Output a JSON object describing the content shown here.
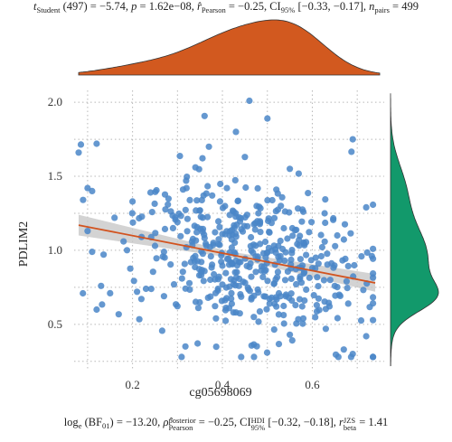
{
  "stats_top": {
    "t_sym": "t",
    "t_sub": "Student",
    "t_val": " (497) = −5.74, ",
    "p_sym": "p",
    "p_val": " = 1.62e−08, ",
    "r_sym": "r̂",
    "r_sub": "Pearson",
    "r_val": " = −0.25, CI",
    "ci_sub": "95%",
    "ci_val": " [−0.33, −0.17], ",
    "n_sym": "n",
    "n_sub": "pairs",
    "n_val": " = 499"
  },
  "stats_bottom": {
    "log_txt": "log",
    "log_sub": "e",
    "bf_txt": " (BF",
    "bf_sub": "01",
    "bf_val": ") = −13.20, ",
    "rho_sym": "ρ̂",
    "rho_sup": "posterior",
    "rho_sub": "Pearson",
    "rho_val": " = −0.25, CI",
    "hdi_sup": "HDI",
    "hdi_sub": "95%",
    "hdi_val": " [−0.32, −0.18], ",
    "rbeta_sym": "r",
    "rbeta_sup": "JZS",
    "rbeta_sub": "beta",
    "rbeta_val": " = 1.41"
  },
  "chart_data": {
    "type": "scatter",
    "xlabel": "cg05698069",
    "ylabel": "PDLIM2",
    "xlim": [
      0.07,
      0.76
    ],
    "ylim": [
      0.2,
      2.08
    ],
    "x_ticks": [
      "0.2",
      "0.4",
      "0.6"
    ],
    "x_tick_values": [
      0.2,
      0.4,
      0.6
    ],
    "y_ticks": [
      "0.5",
      "1.0",
      "1.5",
      "2.0"
    ],
    "y_tick_values": [
      0.5,
      1.0,
      1.5,
      2.0
    ],
    "grid": true,
    "n_points": 499,
    "regression": {
      "x": [
        0.08,
        0.74
      ],
      "y": [
        1.17,
        0.78
      ],
      "ci_low_start": 1.1,
      "ci_high_start": 1.24,
      "ci_low_end": 0.72,
      "ci_high_end": 0.84
    },
    "sample_points": [
      [
        0.08,
        1.66
      ],
      [
        0.12,
        1.72
      ],
      [
        0.1,
        1.42
      ],
      [
        0.11,
        1.4
      ],
      [
        0.09,
        1.34
      ],
      [
        0.1,
        1.13
      ],
      [
        0.16,
        1.22
      ],
      [
        0.11,
        0.99
      ],
      [
        0.13,
        0.76
      ],
      [
        0.15,
        0.71
      ],
      [
        0.12,
        0.6
      ],
      [
        0.18,
        1.06
      ],
      [
        0.2,
        1.33
      ],
      [
        0.22,
        1.09
      ],
      [
        0.24,
        1.39
      ],
      [
        0.25,
        1.03
      ],
      [
        0.21,
        0.72
      ],
      [
        0.23,
        0.74
      ],
      [
        0.27,
        0.99
      ],
      [
        0.29,
        1.15
      ],
      [
        0.3,
        1.19
      ],
      [
        0.32,
        1.42
      ],
      [
        0.34,
        1.56
      ],
      [
        0.35,
        1.27
      ],
      [
        0.37,
        1.7
      ],
      [
        0.38,
        1.05
      ],
      [
        0.4,
        1.11
      ],
      [
        0.41,
        1.42
      ],
      [
        0.43,
        1.8
      ],
      [
        0.45,
        1.63
      ],
      [
        0.46,
        2.01
      ],
      [
        0.48,
        1.25
      ],
      [
        0.5,
        1.89
      ],
      [
        0.52,
        1.41
      ],
      [
        0.53,
        1.3
      ],
      [
        0.55,
        1.55
      ],
      [
        0.57,
        1.07
      ],
      [
        0.58,
        1.26
      ],
      [
        0.6,
        0.88
      ],
      [
        0.62,
        0.96
      ],
      [
        0.64,
        0.8
      ],
      [
        0.66,
        0.7
      ],
      [
        0.68,
        0.64
      ],
      [
        0.69,
        1.75
      ],
      [
        0.72,
        1.29
      ],
      [
        0.67,
        0.33
      ],
      [
        0.69,
        0.3
      ],
      [
        0.72,
        0.42
      ],
      [
        0.55,
        0.43
      ],
      [
        0.63,
        0.47
      ],
      [
        0.43,
        0.58
      ],
      [
        0.47,
        0.55
      ],
      [
        0.52,
        0.62
      ],
      [
        0.58,
        0.54
      ],
      [
        0.33,
        0.92
      ],
      [
        0.36,
        0.86
      ],
      [
        0.44,
        0.92
      ],
      [
        0.49,
        0.82
      ],
      [
        0.39,
        0.74
      ],
      [
        0.42,
        0.71
      ],
      [
        0.61,
        0.63
      ],
      [
        0.65,
        0.76
      ],
      [
        0.31,
        0.81
      ],
      [
        0.27,
        0.69
      ]
    ]
  },
  "colors": {
    "points": "#4a86c8",
    "regression": "#d2531f",
    "ci_band": "#c8c8c8",
    "top_density": "#d2591f",
    "right_density": "#12996b"
  }
}
